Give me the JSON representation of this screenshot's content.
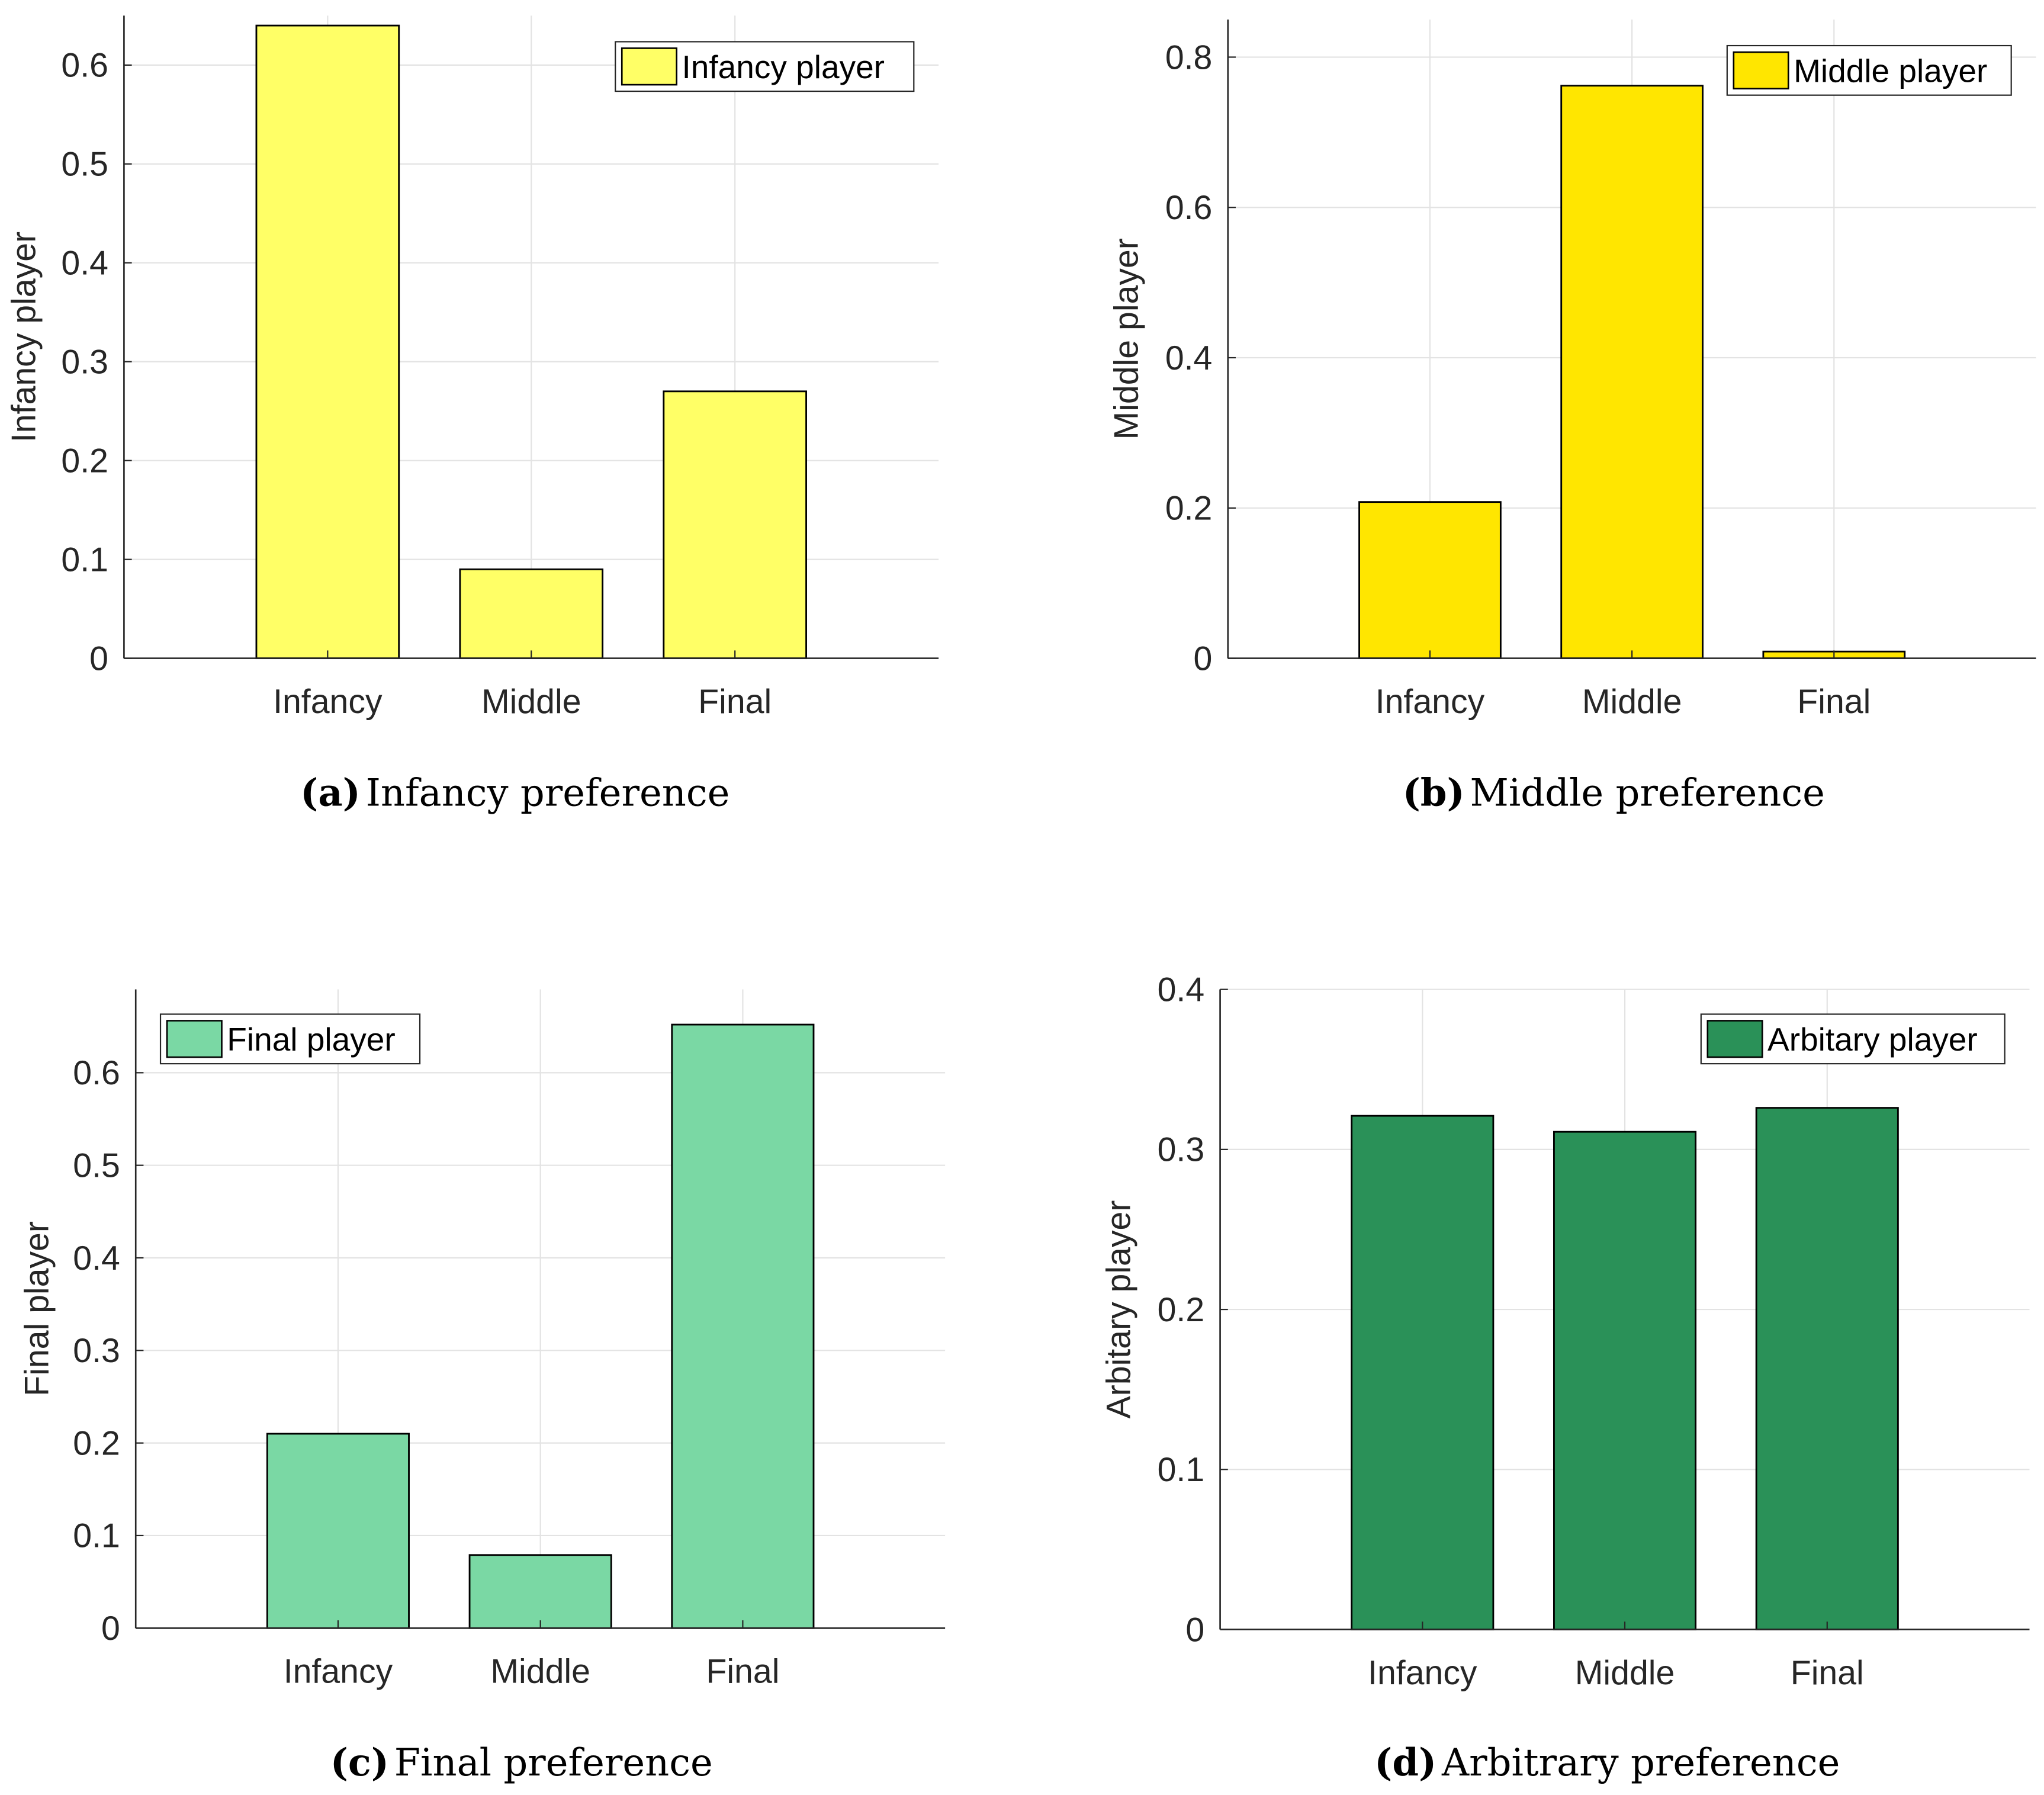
{
  "chart_data": [
    {
      "type": "bar",
      "panel": "a",
      "categories": [
        "Infancy",
        "Middle",
        "Final"
      ],
      "values": [
        0.64,
        0.09,
        0.27
      ],
      "ylabel": "Infancy player",
      "legend": "Infancy player",
      "legend_position": "top-right",
      "ylim": [
        0,
        0.65
      ],
      "yticks": [
        0,
        0.1,
        0.2,
        0.3,
        0.4,
        0.5,
        0.6
      ],
      "ytick_labels": [
        "0",
        "0.1",
        "0.2",
        "0.3",
        "0.4",
        "0.5",
        "0.6"
      ],
      "color": "#FFFF66",
      "grid": true,
      "caption_letter": "(a)",
      "caption_text": "Infancy preference"
    },
    {
      "type": "bar",
      "panel": "b",
      "categories": [
        "Infancy",
        "Middle",
        "Final"
      ],
      "values": [
        0.208,
        0.762,
        0.009
      ],
      "ylabel": "Middle player",
      "legend": "Middle player",
      "legend_position": "top-right",
      "ylim": [
        0,
        0.85
      ],
      "yticks": [
        0,
        0.2,
        0.4,
        0.6,
        0.8
      ],
      "ytick_labels": [
        "0",
        "0.2",
        "0.4",
        "0.6",
        "0.8"
      ],
      "color": "#FFE600",
      "grid": true,
      "caption_letter": "(b)",
      "caption_text": "Middle preference"
    },
    {
      "type": "bar",
      "panel": "c",
      "categories": [
        "Infancy",
        "Middle",
        "Final"
      ],
      "values": [
        0.21,
        0.079,
        0.652
      ],
      "ylabel": "Final player",
      "legend": "Final player",
      "legend_position": "top-left",
      "ylim": [
        0,
        0.69
      ],
      "yticks": [
        0,
        0.1,
        0.2,
        0.3,
        0.4,
        0.5,
        0.6
      ],
      "ytick_labels": [
        "0",
        "0.1",
        "0.2",
        "0.3",
        "0.4",
        "0.5",
        "0.6"
      ],
      "color": "#7AD8A4",
      "grid": true,
      "caption_letter": "(c)",
      "caption_text": "Final preference"
    },
    {
      "type": "bar",
      "panel": "d",
      "categories": [
        "Infancy",
        "Middle",
        "Final"
      ],
      "values": [
        0.321,
        0.311,
        0.326
      ],
      "ylabel": "Arbitary player",
      "legend": "Arbitary player",
      "legend_position": "top-right",
      "ylim": [
        0,
        0.4
      ],
      "yticks": [
        0,
        0.1,
        0.2,
        0.3,
        0.4
      ],
      "ytick_labels": [
        "0",
        "0.1",
        "0.2",
        "0.3",
        "0.4"
      ],
      "color": "#2A9158",
      "grid": true,
      "caption_letter": "(d)",
      "caption_text": "Arbitrary preference"
    }
  ]
}
